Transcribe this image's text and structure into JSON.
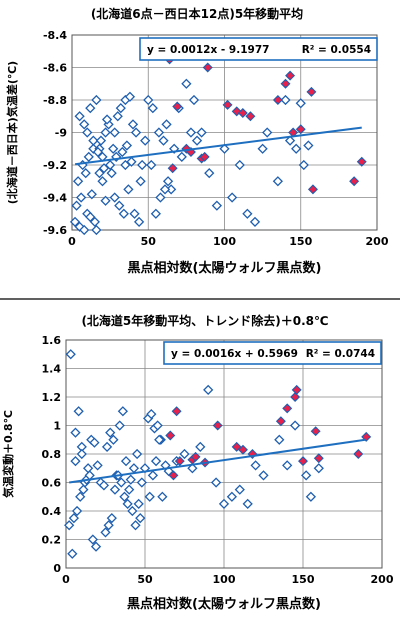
{
  "chart_data": [
    {
      "type": "scatter",
      "title": "(北海道6点－西日本12点)5年移動平均",
      "xlabel": "黒点相対数(太陽ウォルフ黒点数)",
      "ylabel": "(北海道－西日本)気温差(℃)",
      "equation": "y = 0.0012x - 9.1977",
      "r2_label": "R² = 0.0554",
      "xlim": [
        0,
        200
      ],
      "ylim": [
        -9.6,
        -8.4
      ],
      "xticks": [
        "0",
        "50",
        "100",
        "150",
        "200"
      ],
      "yticks": [
        "-8.4",
        "-8.6",
        "-8.8",
        "-9",
        "-9.2",
        "-9.4",
        "-9.6"
      ],
      "trend": {
        "slope": 0.0012,
        "intercept": -9.1977
      },
      "colors": {
        "marker": "#1f5fb0",
        "highlight": "#e8204a",
        "trend": "#1f6fc0",
        "grid": "#888888"
      },
      "grid": true,
      "series": [
        {
          "marker": "open-diamond",
          "x": [
            2,
            5,
            8,
            3,
            6,
            10,
            12,
            4,
            9,
            15,
            7,
            11,
            14,
            18,
            20,
            16,
            13,
            5,
            8,
            10,
            12,
            14,
            16,
            18,
            20,
            22,
            24,
            25,
            27,
            30,
            32,
            35,
            38,
            40,
            42,
            45,
            48,
            50,
            52,
            28,
            31,
            34,
            37,
            26,
            29,
            33,
            36,
            39,
            41,
            44,
            22,
            19,
            17,
            21,
            23,
            28,
            35,
            46,
            53,
            57,
            60,
            62,
            65,
            67,
            70,
            72,
            75,
            78,
            80,
            82,
            85,
            55,
            58,
            61,
            63,
            90,
            95,
            100,
            105,
            110,
            115,
            120,
            125,
            128,
            135,
            140,
            143,
            147,
            150,
            152,
            155
          ],
          "y": [
            -9.55,
            -9.58,
            -9.6,
            -9.45,
            -9.4,
            -9.5,
            -9.52,
            -9.3,
            -9.25,
            -9.55,
            -9.2,
            -9.15,
            -9.1,
            -9.25,
            -9.3,
            -9.6,
            -9.38,
            -8.9,
            -8.95,
            -9.0,
            -8.85,
            -9.05,
            -8.8,
            -9.1,
            -9.15,
            -9.0,
            -8.95,
            -9.2,
            -9.1,
            -8.9,
            -8.85,
            -8.8,
            -8.78,
            -8.95,
            -9.0,
            -9.3,
            -9.05,
            -8.8,
            -9.2,
            -9.4,
            -9.45,
            -9.5,
            -9.35,
            -9.25,
            -9.15,
            -9.12,
            -9.08,
            -9.18,
            -9.5,
            -9.55,
            -9.42,
            -9.05,
            -9.12,
            -9.22,
            -8.92,
            -9.0,
            -9.2,
            -9.2,
            -8.85,
            -9.0,
            -9.05,
            -8.95,
            -9.35,
            -9.1,
            -8.85,
            -9.15,
            -8.7,
            -9.0,
            -8.8,
            -9.05,
            -9.0,
            -9.5,
            -9.4,
            -9.35,
            -9.3,
            -9.25,
            -9.45,
            -9.1,
            -9.4,
            -9.2,
            -9.5,
            -9.55,
            -9.1,
            -9.0,
            -9.3,
            -8.8,
            -9.05,
            -9.1,
            -8.82,
            -9.2,
            -9.08
          ]
        },
        {
          "marker": "filled-diamond",
          "x": [
            64,
            66,
            69,
            75,
            78,
            85,
            87,
            89,
            102,
            108,
            112,
            117,
            135,
            140,
            143,
            145,
            150,
            157,
            158,
            185,
            190
          ],
          "y": [
            -8.55,
            -9.22,
            -8.84,
            -9.1,
            -9.12,
            -9.16,
            -9.15,
            -8.6,
            -8.83,
            -8.87,
            -8.88,
            -8.9,
            -8.8,
            -8.7,
            -8.65,
            -9.0,
            -8.98,
            -8.75,
            -9.35,
            -9.3,
            -9.18
          ]
        }
      ]
    },
    {
      "type": "scatter",
      "title": "(北海道5年移動平均、トレンド除去)＋0.8℃",
      "xlabel": "黒点相対数(太陽ウォルフ黒点数)",
      "ylabel": "気温変動＋0.8℃",
      "equation": "y = 0.0016x + 0.5969",
      "r2_label": "R² = 0.0744",
      "xlim": [
        0,
        200
      ],
      "ylim": [
        0,
        1.6
      ],
      "xticks": [
        "0",
        "50",
        "100",
        "150",
        "200"
      ],
      "yticks": [
        "1.6",
        "1.4",
        "1.2",
        "1",
        "0.8",
        "0.6",
        "0.4",
        "0.2",
        "0"
      ],
      "trend": {
        "slope": 0.0016,
        "intercept": 0.5969
      },
      "colors": {
        "marker": "#1f5fb0",
        "highlight": "#e8204a",
        "trend": "#1f6fc0",
        "grid": "#888888"
      },
      "grid": true,
      "series": [
        {
          "marker": "open-diamond",
          "x": [
            3,
            5,
            6,
            8,
            10,
            12,
            14,
            4,
            7,
            9,
            11,
            13,
            15,
            17,
            19,
            2,
            6,
            10,
            16,
            18,
            20,
            22,
            24,
            26,
            28,
            30,
            32,
            34,
            36,
            38,
            40,
            42,
            44,
            46,
            48,
            50,
            52,
            54,
            56,
            58,
            60,
            25,
            27,
            29,
            31,
            33,
            35,
            37,
            39,
            41,
            43,
            45,
            47,
            53,
            55,
            57,
            59,
            61,
            63,
            65,
            70,
            75,
            80,
            85,
            90,
            95,
            100,
            105,
            110,
            115,
            120,
            125,
            135,
            140,
            145,
            152,
            155,
            160
          ],
          "y": [
            1.5,
            0.35,
            0.95,
            1.1,
            0.85,
            0.6,
            0.7,
            0.1,
            0.4,
            0.5,
            0.55,
            0.62,
            0.65,
            0.2,
            0.15,
            0.3,
            0.75,
            0.8,
            0.9,
            0.88,
            0.72,
            0.6,
            0.58,
            0.85,
            0.95,
            0.9,
            0.65,
            1.0,
            1.1,
            0.75,
            0.55,
            0.4,
            0.3,
            0.45,
            0.6,
            0.7,
            1.05,
            1.08,
            0.98,
            1.0,
            0.9,
            0.25,
            0.3,
            0.35,
            0.55,
            0.65,
            0.6,
            0.5,
            0.45,
            0.62,
            0.7,
            0.8,
            0.35,
            0.5,
            0.65,
            0.75,
            0.9,
            0.5,
            0.72,
            0.68,
            0.75,
            0.8,
            0.7,
            0.85,
            1.25,
            0.6,
            0.45,
            0.5,
            0.55,
            0.45,
            0.72,
            0.65,
            0.9,
            0.72,
            1.0,
            0.65,
            0.5,
            0.7
          ]
        },
        {
          "marker": "filled-diamond",
          "x": [
            66,
            68,
            70,
            72,
            80,
            82,
            88,
            96,
            108,
            112,
            118,
            136,
            140,
            145,
            146,
            150,
            158,
            160,
            185,
            190
          ],
          "y": [
            0.93,
            0.65,
            1.1,
            0.75,
            0.76,
            0.78,
            0.74,
            1.0,
            0.85,
            0.83,
            0.8,
            1.03,
            1.12,
            1.2,
            1.25,
            0.75,
            0.96,
            0.77,
            0.8,
            0.92
          ]
        }
      ]
    }
  ]
}
